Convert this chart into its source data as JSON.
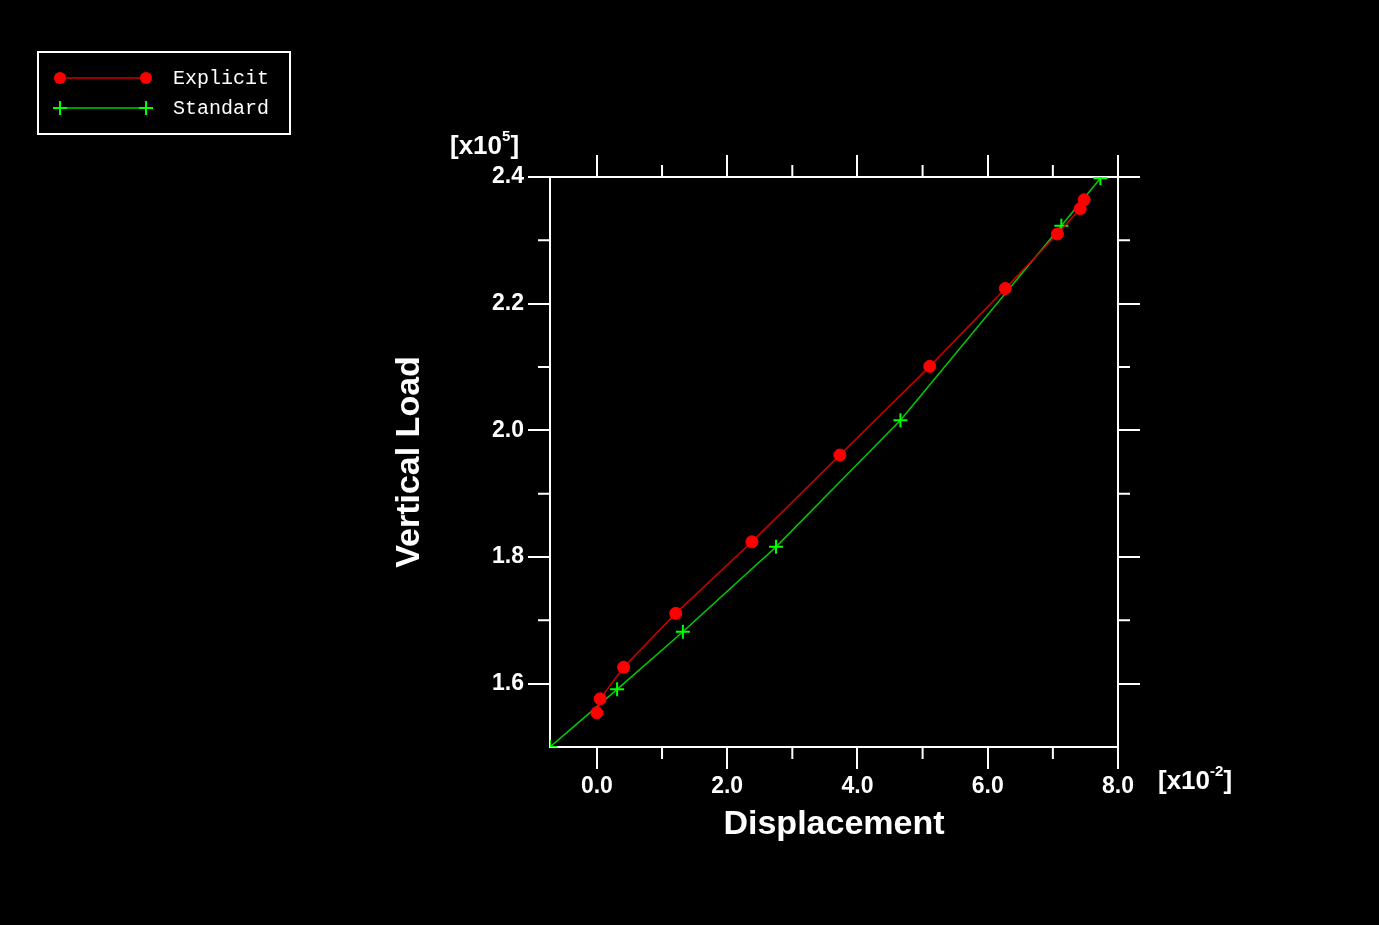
{
  "chart_data": {
    "type": "line",
    "xlabel": "Displacement",
    "ylabel": "Vertical Load",
    "annotations": [
      "[x10$^{5}$]",
      "[x10$^{-2}$]"
    ],
    "xlim": [
      -0.72,
      8.0
    ],
    "ylim": [
      1.5,
      2.4
    ],
    "xticks": [
      {
        "value": 0,
        "label": "0.0"
      },
      {
        "value": 1,
        "label": null
      },
      {
        "value": 2,
        "label": "2.0"
      },
      {
        "value": 3,
        "label": null
      },
      {
        "value": 4,
        "label": "4.0"
      },
      {
        "value": 5,
        "label": null
      },
      {
        "value": 6,
        "label": "6.0"
      },
      {
        "value": 7,
        "label": null
      },
      {
        "value": 8,
        "label": "8.0"
      }
    ],
    "yticks": [
      {
        "value": 1.6,
        "label": "1.6"
      },
      {
        "value": 1.7,
        "label": null
      },
      {
        "value": 1.8,
        "label": "1.8"
      },
      {
        "value": 1.9,
        "label": null
      },
      {
        "value": 2.0,
        "label": "2.0"
      },
      {
        "value": 2.1,
        "label": null
      },
      {
        "value": 2.2,
        "label": "2.2"
      },
      {
        "value": 2.3,
        "label": null
      },
      {
        "value": 2.4,
        "label": "2.4"
      }
    ],
    "grid": false,
    "legend": "top left",
    "line_style": "solid",
    "series": [
      {
        "name": "Explicit",
        "color": "#ff0000",
        "marker": "circle",
        "x": [
          0.0,
          0.05,
          0.41,
          1.21,
          2.38,
          3.73,
          5.11,
          6.27,
          7.07,
          7.42,
          7.48
        ],
        "values": [
          1.554,
          1.576,
          1.626,
          1.711,
          1.824,
          1.961,
          2.101,
          2.224,
          2.31,
          2.35,
          2.364
        ]
      },
      {
        "name": "Standard",
        "color": "#00ff00",
        "marker": "cross",
        "x": [
          -0.72,
          0.31,
          1.32,
          2.75,
          4.66,
          7.13,
          7.73
        ],
        "values": [
          1.5,
          1.591,
          1.682,
          1.816,
          2.016,
          2.323,
          2.398
        ]
      }
    ]
  }
}
